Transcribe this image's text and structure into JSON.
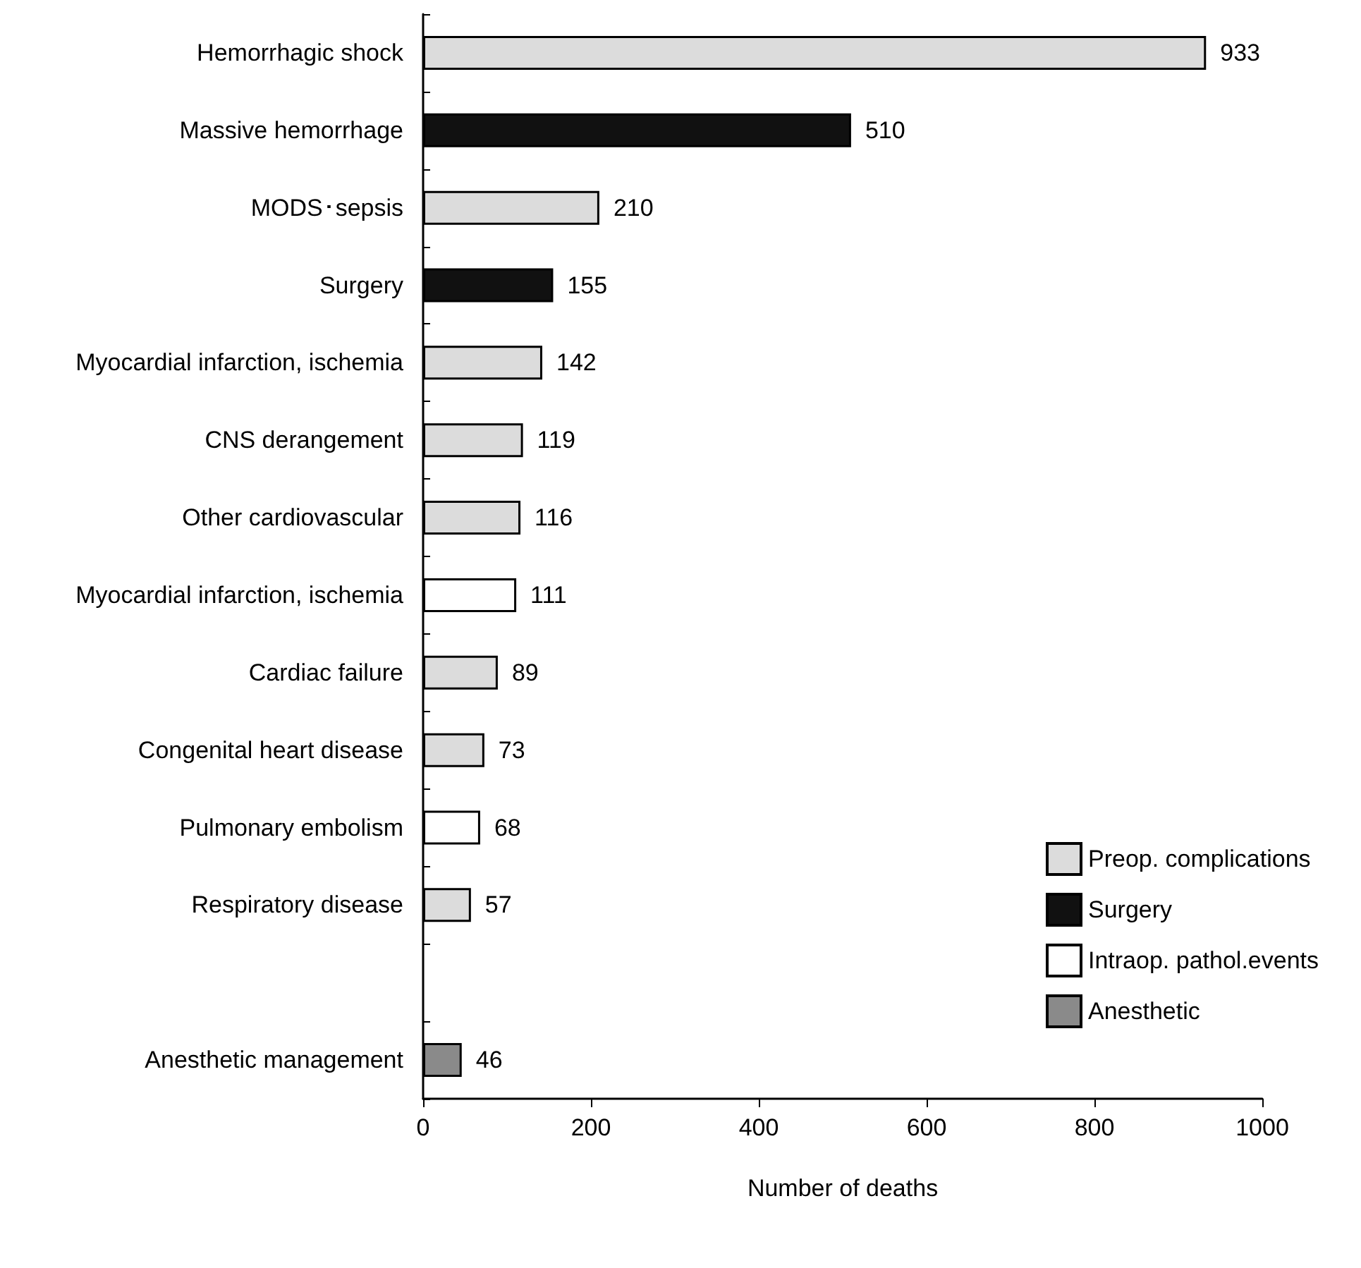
{
  "chart_data": {
    "type": "bar",
    "orientation": "horizontal",
    "stacked": true,
    "xlabel": "Number of deaths",
    "categories": [
      "Hemorrhagic shock",
      "Massive hemorrhage",
      "MODS･sepsis",
      "Surgery",
      "Myocardial infarction, ischemia",
      "CNS derangement",
      "Other cardiovascular",
      "Myocardial infarction, ischemia",
      "Cardiac failure",
      "Congenital heart disease",
      "Pulmonary embolism",
      "Respiratory disease",
      null,
      "Anesthetic management"
    ],
    "series": [
      {
        "name": "Preop. complications",
        "color": "#dcdcdc",
        "values": [
          933,
          null,
          210,
          null,
          142,
          119,
          116,
          null,
          89,
          73,
          null,
          57,
          null,
          null
        ]
      },
      {
        "name": "Surgery",
        "color": "#111111",
        "values": [
          null,
          510,
          null,
          155,
          null,
          null,
          null,
          null,
          null,
          null,
          null,
          null,
          null,
          null
        ]
      },
      {
        "name": "Intraop. pathol.events",
        "color": "#ffffff",
        "values": [
          null,
          null,
          null,
          null,
          null,
          null,
          null,
          111,
          null,
          null,
          68,
          null,
          null,
          null
        ]
      },
      {
        "name": "Anesthetic",
        "color": "#8a8a8a",
        "values": [
          null,
          null,
          null,
          null,
          null,
          null,
          null,
          null,
          null,
          null,
          null,
          null,
          null,
          46
        ]
      }
    ],
    "xlim": [
      0,
      1000
    ],
    "xticks": [
      0,
      200,
      400,
      600,
      800,
      1000
    ],
    "data_labels": true,
    "legend": "bottom right",
    "grid": false
  }
}
